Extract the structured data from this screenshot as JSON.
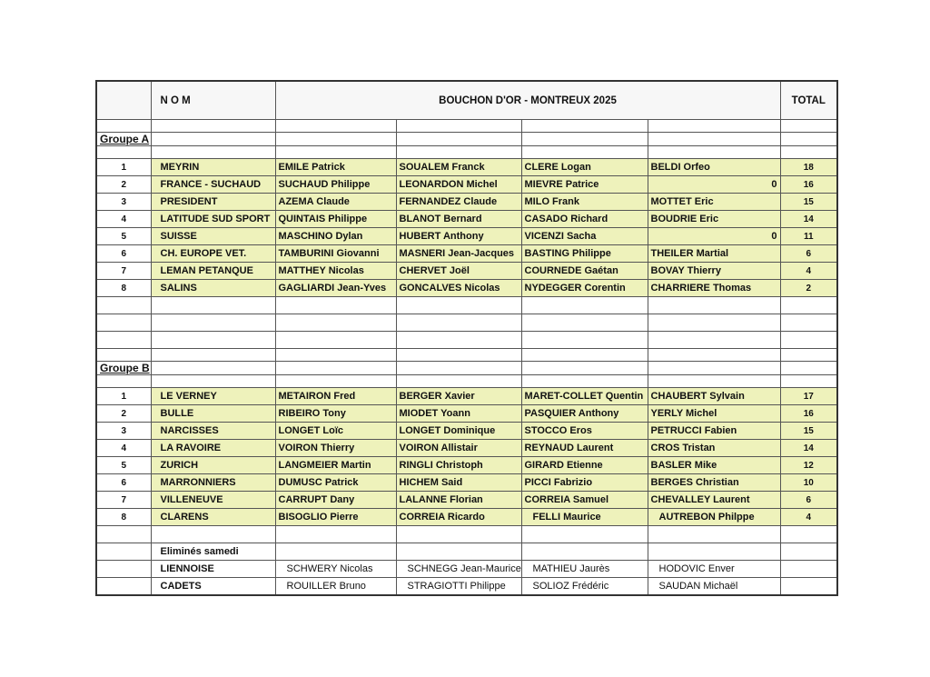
{
  "header": {
    "nom": "N O M",
    "title": "BOUCHON D'OR - MONTREUX 2025",
    "total": "TOTAL"
  },
  "colors": {
    "highlight": "#eef2bb"
  },
  "groups": [
    {
      "label": "Groupe A",
      "teams": [
        {
          "rank": "1",
          "team": "MEYRIN",
          "players": [
            "EMILE Patrick",
            "SOUALEM Franck",
            "CLERE Logan",
            "BELDI Orfeo"
          ],
          "total": "18"
        },
        {
          "rank": "2",
          "team": "FRANCE - SUCHAUD",
          "players": [
            "SUCHAUD Philippe",
            "LEONARDON Michel",
            "MIEVRE Patrice",
            "0"
          ],
          "total": "16"
        },
        {
          "rank": "3",
          "team": "PRESIDENT",
          "players": [
            "AZEMA Claude",
            "FERNANDEZ Claude",
            "MILO Frank",
            "MOTTET Eric"
          ],
          "total": "15"
        },
        {
          "rank": "4",
          "team": "LATITUDE SUD SPORT",
          "players": [
            "QUINTAIS Philippe",
            "BLANOT Bernard",
            "CASADO Richard",
            "BOUDRIE Eric"
          ],
          "total": "14"
        },
        {
          "rank": "5",
          "team": "SUISSE",
          "players": [
            "MASCHINO Dylan",
            "HUBERT Anthony",
            "VICENZI Sacha",
            "0"
          ],
          "total": "11"
        },
        {
          "rank": "6",
          "team": "CH. EUROPE VET.",
          "players": [
            "TAMBURINI Giovanni",
            "MASNERI Jean-Jacques",
            "BASTING Philippe",
            "THEILER Martial"
          ],
          "total": "6"
        },
        {
          "rank": "7",
          "team": "LEMAN PETANQUE",
          "players": [
            "MATTHEY Nicolas",
            "CHERVET Joël",
            "COURNEDE Gaétan",
            "BOVAY Thierry"
          ],
          "total": "4"
        },
        {
          "rank": "8",
          "team": "SALINS",
          "players": [
            "GAGLIARDI Jean-Yves",
            "GONCALVES Nicolas",
            "NYDEGGER Corentin",
            "CHARRIERE Thomas"
          ],
          "total": "2"
        }
      ]
    },
    {
      "label": "Groupe B",
      "teams": [
        {
          "rank": "1",
          "team": "LE VERNEY",
          "players": [
            "METAIRON Fred",
            "BERGER Xavier",
            "MARET-COLLET Quentin",
            "CHAUBERT Sylvain"
          ],
          "total": "17"
        },
        {
          "rank": "2",
          "team": "BULLE",
          "players": [
            "RIBEIRO Tony",
            "MIODET Yoann",
            "PASQUIER Anthony",
            "YERLY Michel"
          ],
          "total": "16"
        },
        {
          "rank": "3",
          "team": "NARCISSES",
          "players": [
            "LONGET Loïc",
            "LONGET Dominique",
            "STOCCO Eros",
            "PETRUCCI Fabien"
          ],
          "total": "15"
        },
        {
          "rank": "4",
          "team": "LA RAVOIRE",
          "players": [
            "VOIRON Thierry",
            "VOIRON Allistair",
            "REYNAUD Laurent",
            "CROS Tristan"
          ],
          "total": "14"
        },
        {
          "rank": "5",
          "team": "ZURICH",
          "players": [
            "LANGMEIER Martin",
            "RINGLI Christoph",
            "GIRARD Etienne",
            "BASLER Mike"
          ],
          "total": "12"
        },
        {
          "rank": "6",
          "team": "MARRONNIERS",
          "players": [
            "DUMUSC Patrick",
            "HICHEM Said",
            "PICCI Fabrizio",
            "BERGES Christian"
          ],
          "total": "10"
        },
        {
          "rank": "7",
          "team": "VILLENEUVE",
          "players": [
            "CARRUPT Dany",
            "LALANNE Florian",
            "CORREIA Samuel",
            "CHEVALLEY Laurent"
          ],
          "total": "6"
        },
        {
          "rank": "8",
          "team": "CLARENS",
          "players": [
            "BISOGLIO Pierre",
            "CORREIA Ricardo",
            "FELLI Maurice",
            "AUTREBON Philppe"
          ],
          "total": "4"
        }
      ]
    }
  ],
  "eliminated": {
    "label": "Eliminés samedi",
    "teams": [
      {
        "team": "LIENNOISE",
        "players": [
          "SCHWERY Nicolas",
          "SCHNEGG Jean-Maurice",
          "MATHIEU Jaurès",
          "HODOVIC Enver"
        ]
      },
      {
        "team": "CADETS",
        "players": [
          "ROUILLER Bruno",
          "STRAGIOTTI Philippe",
          "SOLIOZ Frédéric",
          "SAUDAN Michaël"
        ]
      }
    ]
  }
}
